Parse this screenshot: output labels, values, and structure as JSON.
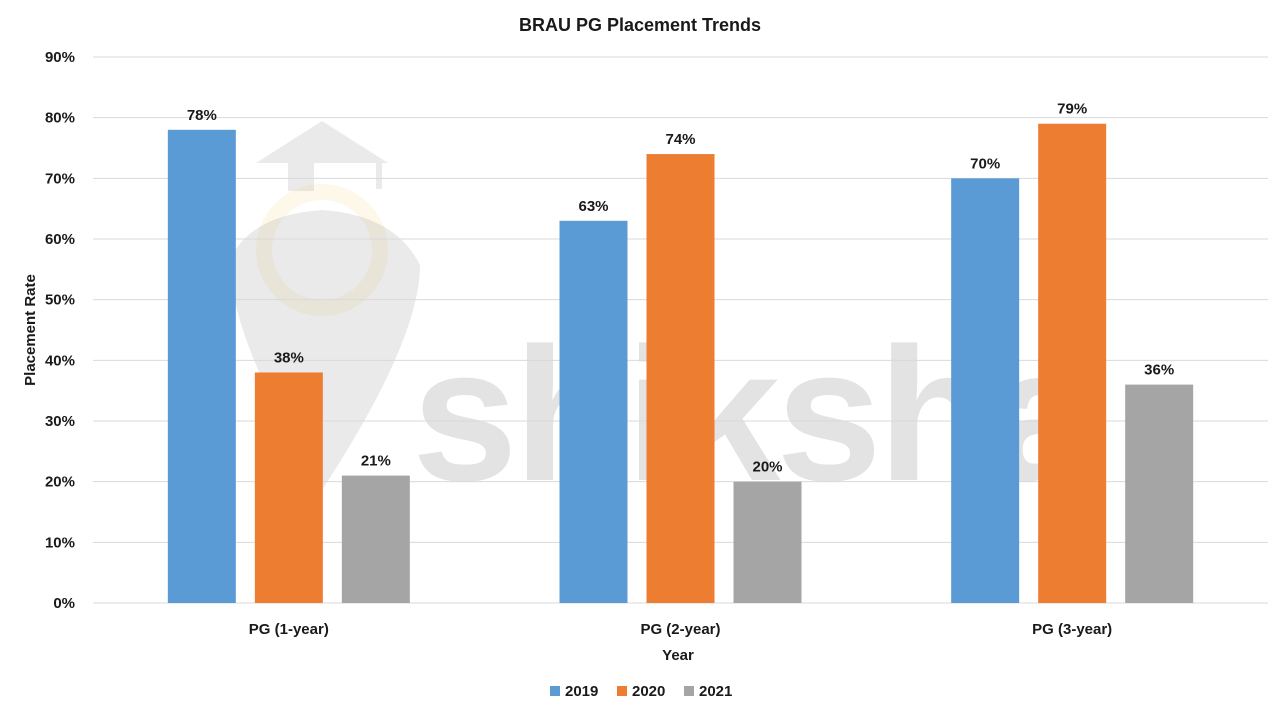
{
  "watermark": {
    "text": "shiksha",
    "ring_color": "#f2c24a"
  },
  "chart_data": {
    "type": "bar",
    "title": "BRAU PG Placement Trends",
    "xlabel": "Year",
    "ylabel": "Placement Rate",
    "categories": [
      "PG (1-year)",
      "PG (2-year)",
      "PG (3-year)"
    ],
    "series": [
      {
        "name": "2019",
        "color": "#5b9bd5",
        "values": [
          78,
          63,
          70
        ],
        "labels": [
          "78%",
          "63%",
          "70%"
        ]
      },
      {
        "name": "2020",
        "color": "#ed7d31",
        "values": [
          38,
          74,
          79
        ],
        "labels": [
          "38%",
          "74%",
          "79%"
        ]
      },
      {
        "name": "2021",
        "color": "#a5a5a5",
        "values": [
          21,
          20,
          36
        ],
        "labels": [
          "21%",
          "20%",
          "36%"
        ]
      }
    ],
    "ylim": [
      0,
      90
    ],
    "yticks": [
      0,
      10,
      20,
      30,
      40,
      50,
      60,
      70,
      80,
      90
    ],
    "ytick_labels": [
      "0%",
      "10%",
      "20%",
      "30%",
      "40%",
      "50%",
      "60%",
      "70%",
      "80%",
      "90%"
    ],
    "grid": true,
    "legend_position": "bottom"
  }
}
